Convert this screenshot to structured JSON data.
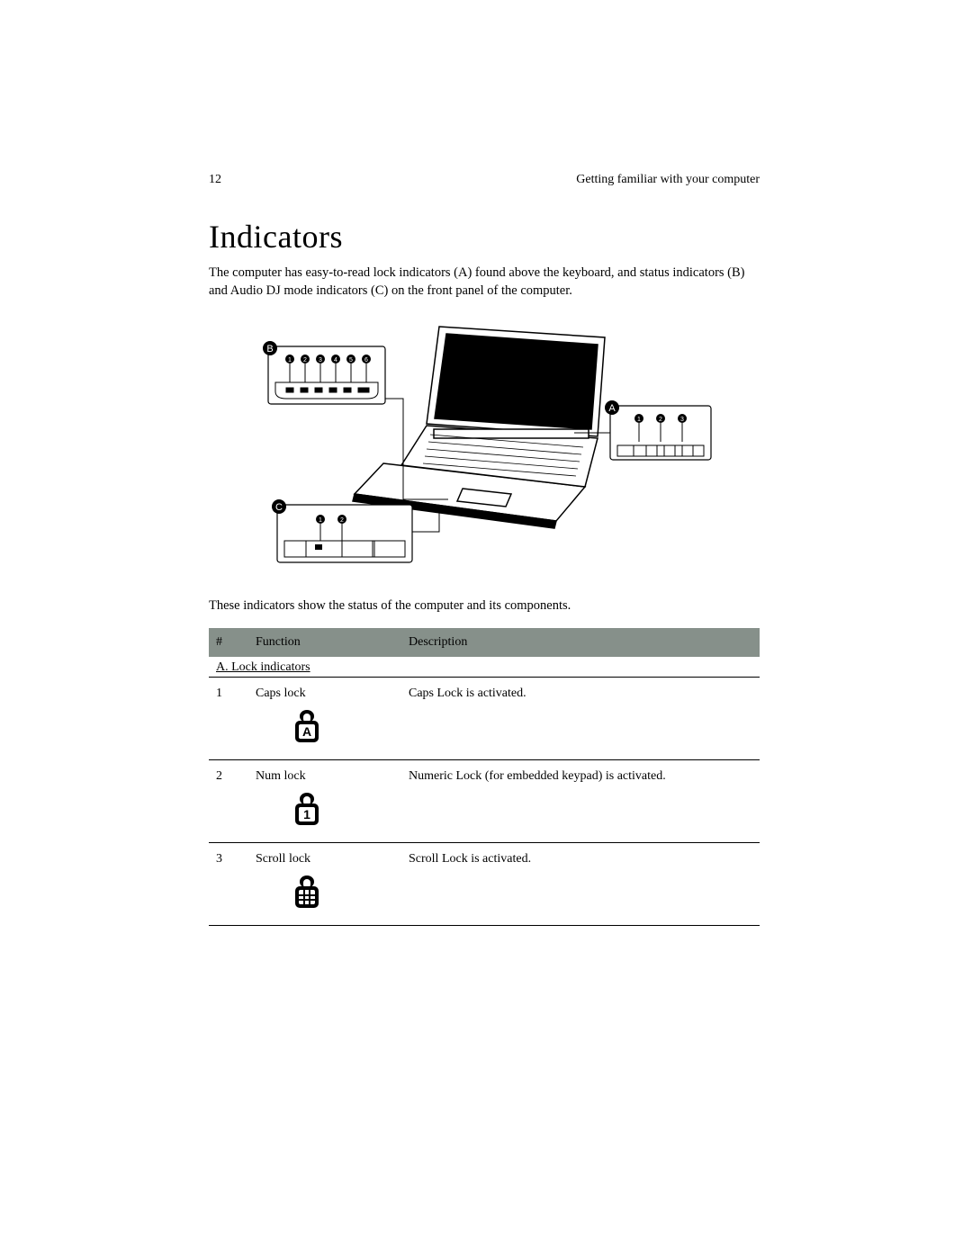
{
  "page_number": "12",
  "running_head": "Getting familiar with your computer",
  "heading": "Indicators",
  "intro": "The computer has easy-to-read lock indicators (A) found above the keyboard, and status indicators (B) and Audio DJ mode indicators (C) on the front panel of the computer.",
  "caption": "These indicators show the status of the computer and its components.",
  "figure": {
    "callouts": {
      "B": {
        "letter": "B",
        "dots": 6
      },
      "A": {
        "letter": "A",
        "dots": 3
      },
      "C": {
        "letter": "C",
        "dots": 2
      }
    },
    "stroke_color": "#000000",
    "fill_color": "#ffffff"
  },
  "table": {
    "header_bg": "#86908a",
    "header_fg": "#000000",
    "columns": [
      "#",
      "Function",
      "Description"
    ],
    "section_label": "A. Lock indicators",
    "rows": [
      {
        "num": "1",
        "func": "Caps lock",
        "icon_label": "A",
        "icon_kind": "letter",
        "desc": "Caps Lock is activated."
      },
      {
        "num": "2",
        "func": "Num lock",
        "icon_label": "1",
        "icon_kind": "letter",
        "desc": "Numeric Lock (for embedded keypad) is activated."
      },
      {
        "num": "3",
        "func": "Scroll lock",
        "icon_label": "",
        "icon_kind": "grid",
        "desc": "Scroll Lock is activated."
      }
    ]
  },
  "colors": {
    "text": "#000000",
    "background": "#ffffff",
    "rule": "#000000"
  }
}
